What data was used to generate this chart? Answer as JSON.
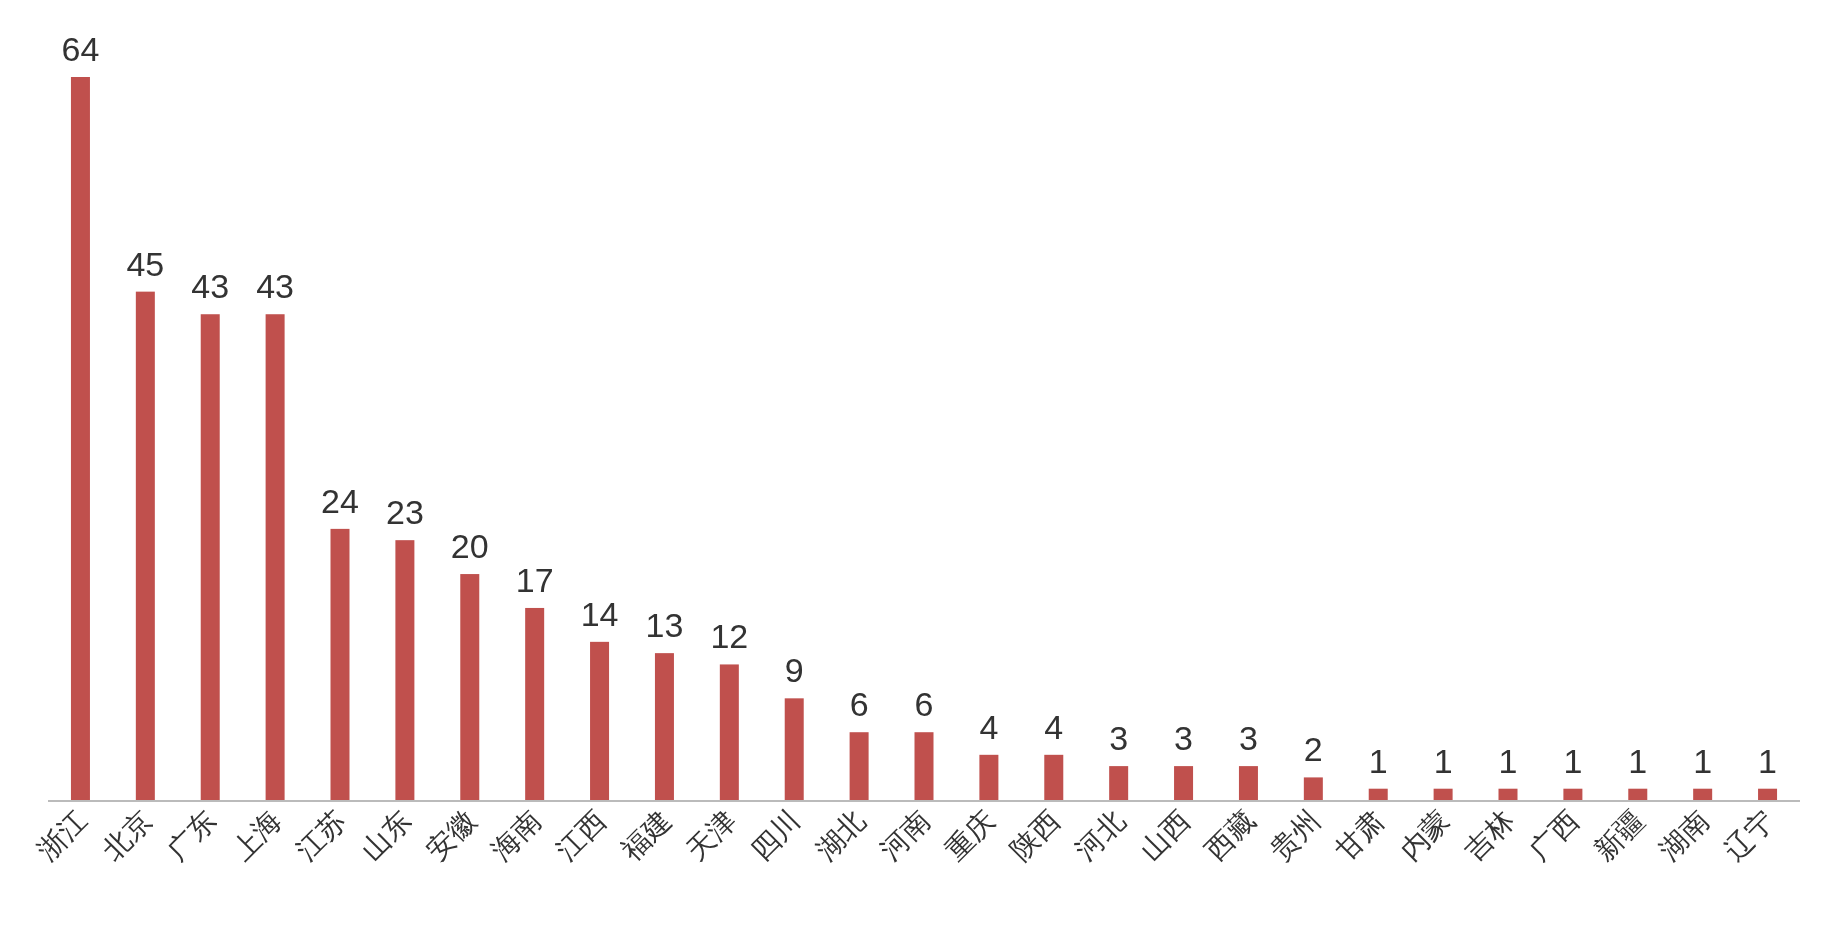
{
  "chart_data": {
    "type": "bar",
    "categories": [
      "浙江",
      "北京",
      "广东",
      "上海",
      "江苏",
      "山东",
      "安徽",
      "海南",
      "江西",
      "福建",
      "天津",
      "四川",
      "湖北",
      "河南",
      "重庆",
      "陕西",
      "河北",
      "山西",
      "西藏",
      "贵州",
      "甘肃",
      "内蒙",
      "吉林",
      "广西",
      "新疆",
      "湖南",
      "辽宁"
    ],
    "values": [
      64,
      45,
      43,
      43,
      24,
      23,
      20,
      17,
      14,
      13,
      12,
      9,
      6,
      6,
      4,
      4,
      3,
      3,
      3,
      2,
      1,
      1,
      1,
      1,
      1,
      1,
      1
    ],
    "color": "#c0504d",
    "data_labels": true
  }
}
